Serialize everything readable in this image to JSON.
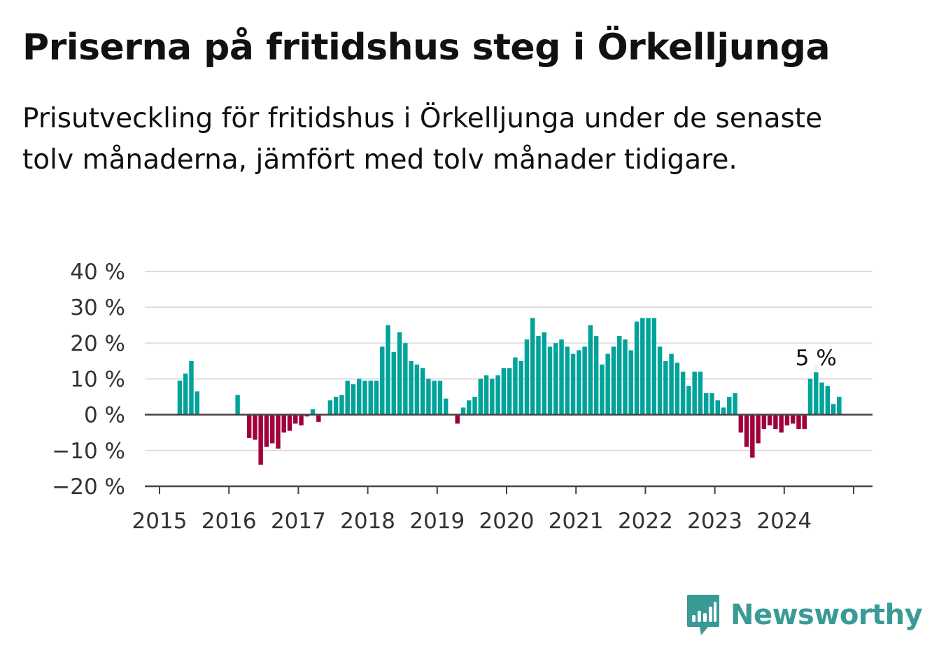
{
  "header": {
    "title": "Priserna på fritidshus steg i Örkelljunga",
    "subtitle": "Prisutveckling för fritidshus i Örkelljunga under de senaste tolv månaderna, jämfört med tolv månader tidigare."
  },
  "brand": {
    "name": "Newsworthy",
    "color": "#3a9a96",
    "icon": "bar-chart-speech-bubble-icon"
  },
  "chart_data": {
    "type": "bar",
    "y_tick_labels": [
      "40 %",
      "30 %",
      "20 %",
      "10 %",
      "0 %",
      "−10 %",
      "−20 %"
    ],
    "y_ticks": [
      40,
      30,
      20,
      10,
      0,
      -10,
      -20
    ],
    "ylim": [
      -20,
      40
    ],
    "x_tick_labels": [
      "2015",
      "2016",
      "2017",
      "2018",
      "2019",
      "2020",
      "2021",
      "2022",
      "2023",
      "2024"
    ],
    "x_start": "2015-01",
    "grid": true,
    "colors": {
      "positive": "#00a39a",
      "negative": "#a0003c",
      "grid": "#dddddd",
      "axis": "#444444"
    },
    "annotation": {
      "text": "5 %"
    },
    "values": [
      null,
      null,
      null,
      9.5,
      11.5,
      15,
      6.5,
      null,
      null,
      null,
      null,
      null,
      null,
      5.5,
      null,
      -6.5,
      -7,
      -14,
      -9,
      -8,
      -9.5,
      -5,
      -4.5,
      -2.5,
      -3,
      -0.5,
      1.5,
      -2,
      null,
      4,
      5,
      5.5,
      9.5,
      8.5,
      10,
      9.5,
      9.5,
      9.5,
      19,
      25,
      17.5,
      23,
      20,
      15,
      14,
      13,
      10,
      9.5,
      9.5,
      4.5,
      null,
      -2.5,
      2,
      4,
      5,
      10,
      11,
      10,
      11,
      13,
      13,
      16,
      15,
      21,
      27,
      22,
      23,
      19,
      20,
      21,
      19,
      17,
      18,
      19,
      25,
      22,
      14,
      17,
      19,
      22,
      21,
      18,
      26,
      27,
      27,
      27,
      19,
      15,
      17,
      14.5,
      12,
      8,
      12,
      12,
      6,
      6,
      4,
      2,
      5,
      6,
      -5,
      -9,
      -12,
      -8,
      -4,
      -3,
      -4,
      -5,
      -3,
      -2.5,
      -4,
      -4,
      10,
      14,
      9,
      8,
      3,
      5
    ]
  }
}
